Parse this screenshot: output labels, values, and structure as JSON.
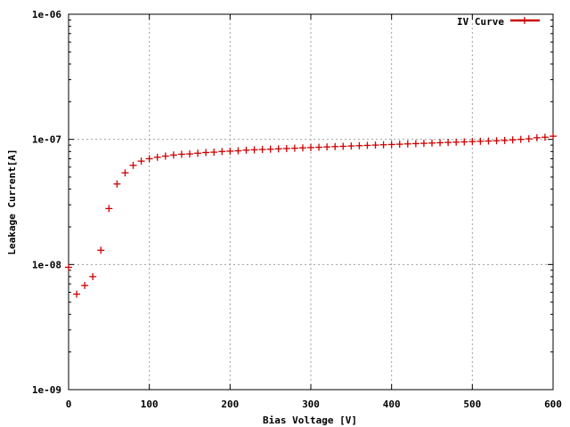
{
  "chart_data": {
    "type": "scatter",
    "title": "",
    "xlabel": "Bias Voltage [V]",
    "ylabel": "Leakage Current[A]",
    "xlim": [
      0,
      600
    ],
    "ylim": [
      1e-09,
      1e-06
    ],
    "yscale": "log",
    "grid": true,
    "legend_position": "top-right",
    "xticks": [
      0,
      100,
      200,
      300,
      400,
      500,
      600
    ],
    "xtick_labels": [
      "0",
      "100",
      "200",
      "300",
      "400",
      "500",
      "600"
    ],
    "yticks": [
      1e-09,
      1e-08,
      1e-07,
      1e-06
    ],
    "ytick_labels": [
      "1e-09",
      "1e-08",
      "1e-07",
      "1e-06"
    ],
    "series": [
      {
        "name": "IV Curve",
        "color": "#cc0000",
        "marker": "plus",
        "x": [
          0,
          10,
          20,
          30,
          40,
          50,
          60,
          70,
          80,
          90,
          100,
          110,
          120,
          130,
          140,
          150,
          160,
          170,
          180,
          190,
          200,
          210,
          220,
          230,
          240,
          250,
          260,
          270,
          280,
          290,
          300,
          310,
          320,
          330,
          340,
          350,
          360,
          370,
          380,
          390,
          400,
          410,
          420,
          430,
          440,
          450,
          460,
          470,
          480,
          490,
          500,
          510,
          520,
          530,
          540,
          550,
          560,
          570,
          580,
          590,
          600
        ],
        "y": [
          9.5e-09,
          5.8e-09,
          6.8e-09,
          8e-09,
          1.3e-08,
          2.8e-08,
          4.4e-08,
          5.4e-08,
          6.2e-08,
          6.7e-08,
          7e-08,
          7.2e-08,
          7.35e-08,
          7.5e-08,
          7.6e-08,
          7.65e-08,
          7.75e-08,
          7.85e-08,
          7.9e-08,
          8e-08,
          8.05e-08,
          8.1e-08,
          8.2e-08,
          8.25e-08,
          8.3e-08,
          8.35e-08,
          8.4e-08,
          8.45e-08,
          8.5e-08,
          8.55e-08,
          8.6e-08,
          8.65e-08,
          8.7e-08,
          8.75e-08,
          8.8e-08,
          8.85e-08,
          8.9e-08,
          8.95e-08,
          9e-08,
          9.05e-08,
          9.1e-08,
          9.15e-08,
          9.2e-08,
          9.25e-08,
          9.3e-08,
          9.35e-08,
          9.4e-08,
          9.45e-08,
          9.5e-08,
          9.55e-08,
          9.6e-08,
          9.65e-08,
          9.7e-08,
          9.75e-08,
          9.8e-08,
          9.9e-08,
          1e-07,
          1.01e-07,
          1.03e-07,
          1.04e-07,
          1.06e-07
        ]
      }
    ]
  }
}
